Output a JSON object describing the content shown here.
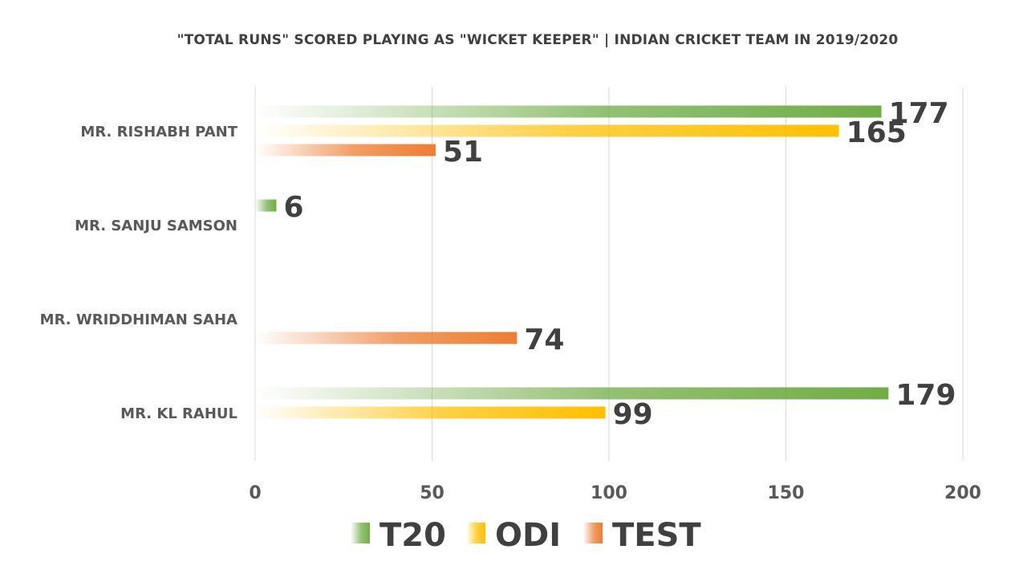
{
  "chart_data": {
    "type": "bar",
    "orientation": "horizontal",
    "title": "\"TOTAL RUNS\" SCORED PLAYING AS \"WICKET KEEPER\" | INDIAN CRICKET TEAM IN 2019/2020",
    "categories": [
      "MR. RISHABH PANT",
      "MR. SANJU SAMSON",
      "MR. WRIDDHIMAN SAHA",
      "MR. KL RAHUL"
    ],
    "series": [
      {
        "name": "T20",
        "color": "#70AD47",
        "values": [
          177,
          6,
          null,
          179
        ]
      },
      {
        "name": "ODI",
        "color": "#FFC000",
        "values": [
          165,
          null,
          null,
          99
        ]
      },
      {
        "name": "TEST",
        "color": "#ED7D31",
        "values": [
          51,
          null,
          74,
          null
        ]
      }
    ],
    "xlim": [
      0,
      200
    ],
    "xticks": [
      0,
      50,
      100,
      150,
      200
    ],
    "grid": true,
    "legend": "bottom",
    "data_labels": true
  }
}
